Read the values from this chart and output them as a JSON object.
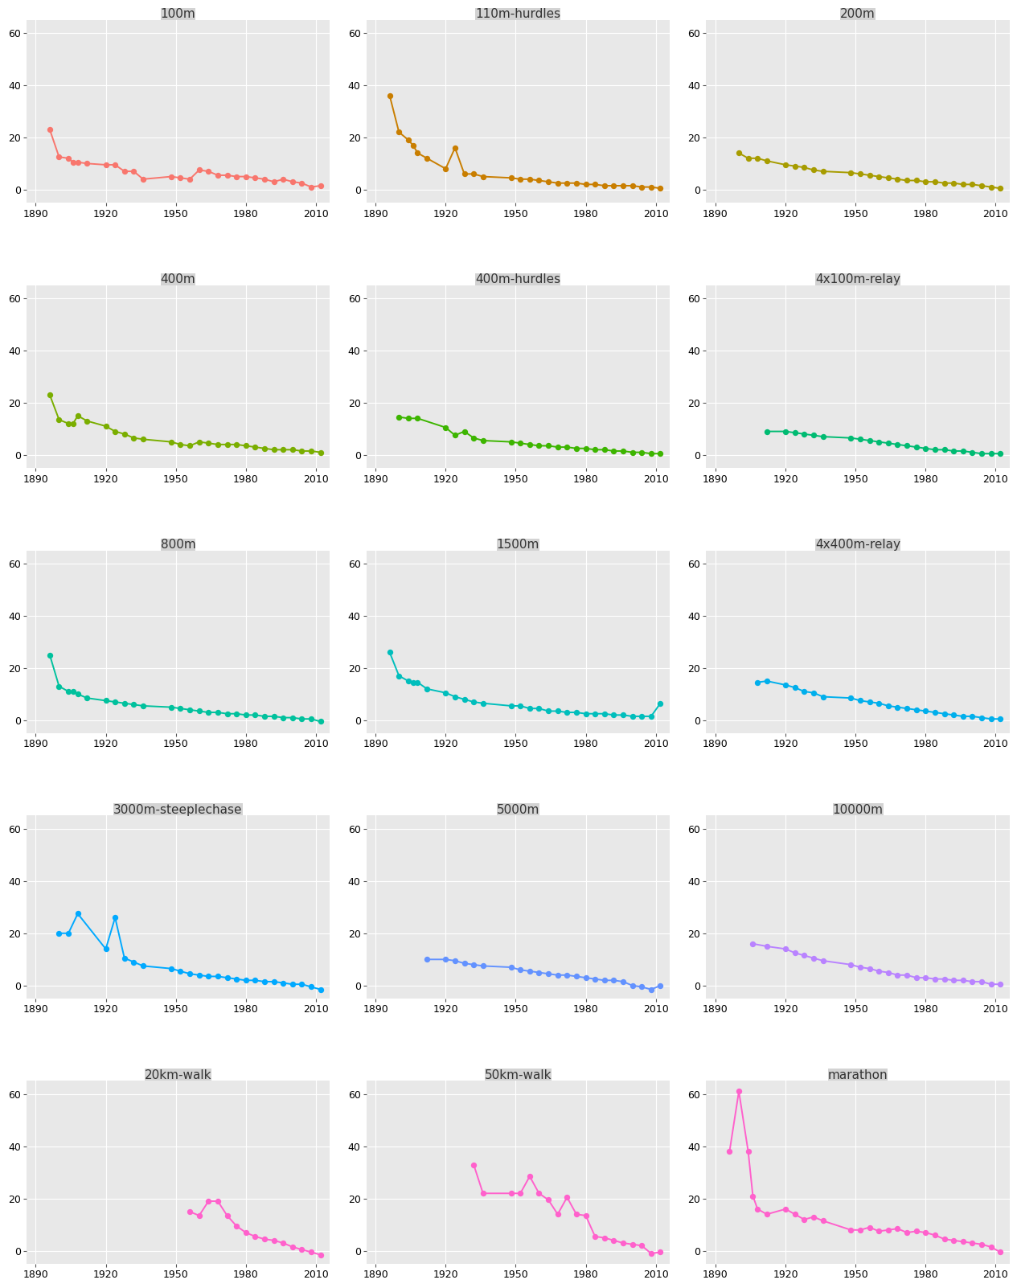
{
  "panels": [
    {
      "title": "100m",
      "color": "#F8766D",
      "years": [
        1896,
        1900,
        1904,
        1906,
        1908,
        1912,
        1920,
        1924,
        1928,
        1932,
        1936,
        1948,
        1952,
        1956,
        1960,
        1964,
        1968,
        1972,
        1976,
        1980,
        1984,
        1988,
        1992,
        1996,
        2000,
        2004,
        2008,
        2012
      ],
      "values": [
        23.0,
        12.5,
        12.0,
        10.5,
        10.5,
        10.0,
        9.5,
        9.5,
        7.0,
        7.0,
        4.0,
        5.0,
        4.5,
        4.0,
        7.5,
        7.0,
        5.5,
        5.5,
        5.0,
        5.0,
        4.5,
        4.0,
        3.0,
        4.0,
        3.0,
        2.5,
        1.0,
        1.5
      ]
    },
    {
      "title": "110m-hurdles",
      "color": "#C97E00",
      "years": [
        1896,
        1900,
        1904,
        1906,
        1908,
        1912,
        1920,
        1924,
        1928,
        1932,
        1936,
        1948,
        1952,
        1956,
        1960,
        1964,
        1968,
        1972,
        1976,
        1980,
        1984,
        1988,
        1992,
        1996,
        2000,
        2004,
        2008,
        2012
      ],
      "values": [
        36.0,
        22.0,
        19.0,
        17.0,
        14.0,
        12.0,
        8.0,
        16.0,
        6.0,
        6.0,
        5.0,
        4.5,
        4.0,
        4.0,
        3.5,
        3.0,
        2.5,
        2.5,
        2.5,
        2.0,
        2.0,
        1.5,
        1.5,
        1.5,
        1.5,
        1.0,
        1.0,
        0.5
      ]
    },
    {
      "title": "200m",
      "color": "#A79C00",
      "years": [
        1900,
        1904,
        1908,
        1912,
        1920,
        1924,
        1928,
        1932,
        1936,
        1948,
        1952,
        1956,
        1960,
        1964,
        1968,
        1972,
        1976,
        1980,
        1984,
        1988,
        1992,
        1996,
        2000,
        2004,
        2008,
        2012
      ],
      "values": [
        14.0,
        12.0,
        12.0,
        11.0,
        9.5,
        9.0,
        8.5,
        7.5,
        7.0,
        6.5,
        6.0,
        5.5,
        5.0,
        4.5,
        4.0,
        3.5,
        3.5,
        3.0,
        3.0,
        2.5,
        2.5,
        2.0,
        2.0,
        1.5,
        1.0,
        0.5
      ]
    },
    {
      "title": "400m",
      "color": "#7AAE00",
      "years": [
        1896,
        1900,
        1904,
        1906,
        1908,
        1912,
        1920,
        1924,
        1928,
        1932,
        1936,
        1948,
        1952,
        1956,
        1960,
        1964,
        1968,
        1972,
        1976,
        1980,
        1984,
        1988,
        1992,
        1996,
        2000,
        2004,
        2008,
        2012
      ],
      "values": [
        23.0,
        13.5,
        12.0,
        12.0,
        15.0,
        13.0,
        11.0,
        9.0,
        8.0,
        6.5,
        6.0,
        5.0,
        4.0,
        3.5,
        5.0,
        4.5,
        4.0,
        4.0,
        4.0,
        3.5,
        3.0,
        2.5,
        2.0,
        2.0,
        2.0,
        1.5,
        1.5,
        1.0
      ]
    },
    {
      "title": "400m-hurdles",
      "color": "#3DB500",
      "years": [
        1900,
        1904,
        1908,
        1920,
        1924,
        1928,
        1932,
        1936,
        1948,
        1952,
        1956,
        1960,
        1964,
        1968,
        1972,
        1976,
        1980,
        1984,
        1988,
        1992,
        1996,
        2000,
        2004,
        2008,
        2012
      ],
      "values": [
        14.5,
        14.0,
        14.0,
        10.5,
        7.5,
        9.0,
        6.5,
        5.5,
        5.0,
        4.5,
        4.0,
        3.5,
        3.5,
        3.0,
        3.0,
        2.5,
        2.5,
        2.0,
        2.0,
        1.5,
        1.5,
        1.0,
        1.0,
        0.5,
        0.5
      ]
    },
    {
      "title": "4x100m-relay",
      "color": "#00BB72",
      "years": [
        1912,
        1920,
        1924,
        1928,
        1932,
        1936,
        1948,
        1952,
        1956,
        1960,
        1964,
        1968,
        1972,
        1976,
        1980,
        1984,
        1988,
        1992,
        1996,
        2000,
        2004,
        2008,
        2012
      ],
      "values": [
        9.0,
        9.0,
        8.5,
        8.0,
        7.5,
        7.0,
        6.5,
        6.0,
        5.5,
        5.0,
        4.5,
        4.0,
        3.5,
        3.0,
        2.5,
        2.0,
        2.0,
        1.5,
        1.5,
        1.0,
        0.5,
        0.5,
        0.5
      ]
    },
    {
      "title": "800m",
      "color": "#00C19D",
      "years": [
        1896,
        1900,
        1904,
        1906,
        1908,
        1912,
        1920,
        1924,
        1928,
        1932,
        1936,
        1948,
        1952,
        1956,
        1960,
        1964,
        1968,
        1972,
        1976,
        1980,
        1984,
        1988,
        1992,
        1996,
        2000,
        2004,
        2008,
        2012
      ],
      "values": [
        25.0,
        13.0,
        11.0,
        11.0,
        10.0,
        8.5,
        7.5,
        7.0,
        6.5,
        6.0,
        5.5,
        5.0,
        4.5,
        4.0,
        3.5,
        3.0,
        3.0,
        2.5,
        2.5,
        2.0,
        2.0,
        1.5,
        1.5,
        1.0,
        1.0,
        0.5,
        0.5,
        -0.5
      ]
    },
    {
      "title": "1500m",
      "color": "#00BEBC",
      "years": [
        1896,
        1900,
        1904,
        1906,
        1908,
        1912,
        1920,
        1924,
        1928,
        1932,
        1936,
        1948,
        1952,
        1956,
        1960,
        1964,
        1968,
        1972,
        1976,
        1980,
        1984,
        1988,
        1992,
        1996,
        2000,
        2004,
        2008,
        2012
      ],
      "values": [
        26.0,
        17.0,
        15.0,
        14.5,
        14.5,
        12.0,
        10.5,
        9.0,
        8.0,
        7.0,
        6.5,
        5.5,
        5.5,
        4.5,
        4.5,
        3.5,
        3.5,
        3.0,
        3.0,
        2.5,
        2.5,
        2.5,
        2.0,
        2.0,
        1.5,
        1.5,
        1.5,
        6.5
      ]
    },
    {
      "title": "4x400m-relay",
      "color": "#00AFEC",
      "years": [
        1908,
        1912,
        1920,
        1924,
        1928,
        1932,
        1936,
        1948,
        1952,
        1956,
        1960,
        1964,
        1968,
        1972,
        1976,
        1980,
        1984,
        1988,
        1992,
        1996,
        2000,
        2004,
        2008,
        2012
      ],
      "values": [
        14.5,
        15.0,
        13.5,
        12.5,
        11.0,
        10.5,
        9.0,
        8.5,
        7.5,
        7.0,
        6.5,
        5.5,
        5.0,
        4.5,
        4.0,
        3.5,
        3.0,
        2.5,
        2.0,
        1.5,
        1.5,
        1.0,
        0.5,
        0.5
      ]
    },
    {
      "title": "3000m-steeplechase",
      "color": "#00A9FF",
      "years": [
        1900,
        1904,
        1908,
        1920,
        1924,
        1928,
        1932,
        1936,
        1948,
        1952,
        1956,
        1960,
        1964,
        1968,
        1972,
        1976,
        1980,
        1984,
        1988,
        1992,
        1996,
        2000,
        2004,
        2008,
        2012
      ],
      "values": [
        20.0,
        20.0,
        27.5,
        14.0,
        26.0,
        10.5,
        9.0,
        7.5,
        6.5,
        5.5,
        4.5,
        4.0,
        3.5,
        3.5,
        3.0,
        2.5,
        2.0,
        2.0,
        1.5,
        1.5,
        1.0,
        0.5,
        0.5,
        -0.5,
        -1.5
      ]
    },
    {
      "title": "5000m",
      "color": "#6392FF",
      "years": [
        1912,
        1920,
        1924,
        1928,
        1932,
        1936,
        1948,
        1952,
        1956,
        1960,
        1964,
        1968,
        1972,
        1976,
        1980,
        1984,
        1988,
        1992,
        1996,
        2000,
        2004,
        2008,
        2012
      ],
      "values": [
        10.0,
        10.0,
        9.5,
        8.5,
        8.0,
        7.5,
        7.0,
        6.0,
        5.5,
        5.0,
        4.5,
        4.0,
        4.0,
        3.5,
        3.0,
        2.5,
        2.0,
        2.0,
        1.5,
        0.0,
        -0.5,
        -1.5,
        0.0
      ]
    },
    {
      "title": "10000m",
      "color": "#B983FF",
      "years": [
        1906,
        1912,
        1920,
        1924,
        1928,
        1932,
        1936,
        1948,
        1952,
        1956,
        1960,
        1964,
        1968,
        1972,
        1976,
        1980,
        1984,
        1988,
        1992,
        1996,
        2000,
        2004,
        2008,
        2012
      ],
      "values": [
        16.0,
        15.0,
        14.0,
        12.5,
        11.5,
        10.5,
        9.5,
        8.0,
        7.0,
        6.5,
        5.5,
        5.0,
        4.0,
        4.0,
        3.0,
        3.0,
        2.5,
        2.5,
        2.0,
        2.0,
        1.5,
        1.5,
        0.5,
        0.5
      ]
    },
    {
      "title": "20km-walk",
      "color": "#FF61CC",
      "years": [
        1956,
        1960,
        1964,
        1968,
        1972,
        1976,
        1980,
        1984,
        1988,
        1992,
        1996,
        2000,
        2004,
        2008,
        2012
      ],
      "values": [
        15.0,
        13.5,
        19.0,
        19.0,
        13.5,
        9.5,
        7.0,
        5.5,
        4.5,
        4.0,
        3.0,
        1.5,
        0.5,
        -0.5,
        -1.5
      ]
    },
    {
      "title": "50km-walk",
      "color": "#FF61CC",
      "years": [
        1932,
        1936,
        1948,
        1952,
        1956,
        1960,
        1964,
        1968,
        1972,
        1976,
        1980,
        1984,
        1988,
        1992,
        1996,
        2000,
        2004,
        2008,
        2012
      ],
      "values": [
        33.0,
        22.0,
        22.0,
        22.0,
        28.5,
        22.0,
        19.5,
        14.0,
        20.5,
        14.0,
        13.5,
        5.5,
        5.0,
        4.0,
        3.0,
        2.5,
        2.0,
        -1.0,
        -0.5
      ]
    },
    {
      "title": "marathon",
      "color": "#FF61CC",
      "years": [
        1896,
        1900,
        1904,
        1906,
        1908,
        1912,
        1920,
        1924,
        1928,
        1932,
        1936,
        1948,
        1952,
        1956,
        1960,
        1964,
        1968,
        1972,
        1976,
        1980,
        1984,
        1988,
        1992,
        1996,
        2000,
        2004,
        2008,
        2012
      ],
      "values": [
        38.0,
        61.0,
        38.0,
        21.0,
        16.0,
        14.0,
        16.0,
        14.0,
        12.0,
        13.0,
        11.5,
        8.0,
        8.0,
        9.0,
        7.5,
        8.0,
        8.5,
        7.0,
        7.5,
        7.0,
        6.0,
        4.5,
        4.0,
        3.5,
        3.0,
        2.5,
        1.5,
        -0.5
      ]
    }
  ],
  "panel_order": [
    "100m",
    "110m-hurdles",
    "200m",
    "400m",
    "400m-hurdles",
    "4x100m-relay",
    "800m",
    "1500m",
    "4x400m-relay",
    "3000m-steeplechase",
    "5000m",
    "10000m",
    "20km-walk",
    "50km-walk",
    "marathon"
  ],
  "ylim": [
    -5,
    65
  ],
  "yticks": [
    0,
    20,
    40,
    60
  ],
  "xlim": [
    1886,
    2016
  ],
  "xticks": [
    1890,
    1920,
    1950,
    1980,
    2010
  ],
  "panel_bg": "#E8E8E8",
  "title_bg": "#D3D3D3",
  "grid_color": "#FFFFFF",
  "fig_bg": "#FFFFFF",
  "dot_size": 28,
  "linewidth": 1.4,
  "title_fontsize": 11,
  "tick_fontsize": 9
}
